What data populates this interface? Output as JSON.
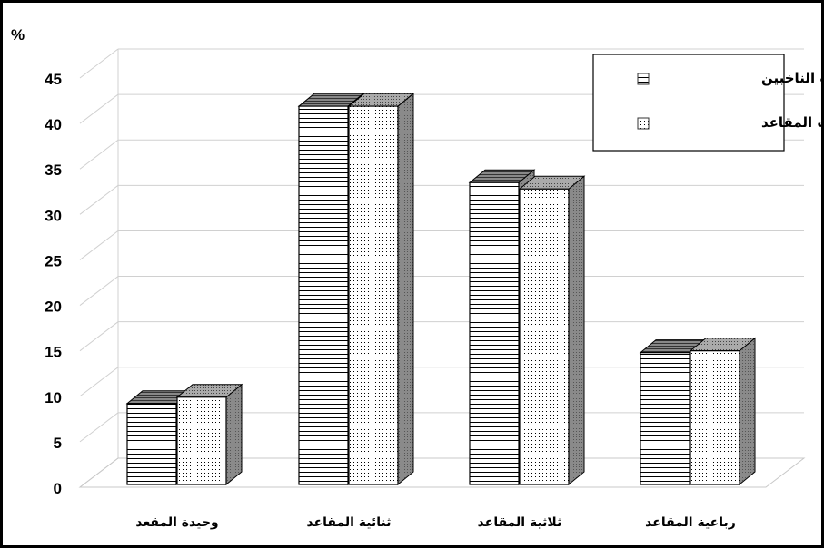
{
  "chart_data": {
    "type": "bar",
    "ylabel": "%",
    "ylim": [
      0,
      45
    ],
    "yticks": [
      "0",
      "5",
      "10",
      "15",
      "20",
      "25",
      "30",
      "35",
      "40",
      "45"
    ],
    "categories": [
      "وحيدة المقعد",
      "ثنائية المقاعد",
      "ثلاثية المقاعد",
      "رباعية المقاعد"
    ],
    "series": [
      {
        "name": "نسب الناخبين",
        "values": [
          9.2,
          41.9,
          33.5,
          14.8
        ],
        "pattern": "horizontal-stripes"
      },
      {
        "name": "نسب المقاعد",
        "values": [
          9.9,
          41.9,
          32.8,
          15.0
        ],
        "pattern": "dots"
      }
    ],
    "grid": true,
    "legend": "top-right",
    "style": "3d-column"
  }
}
